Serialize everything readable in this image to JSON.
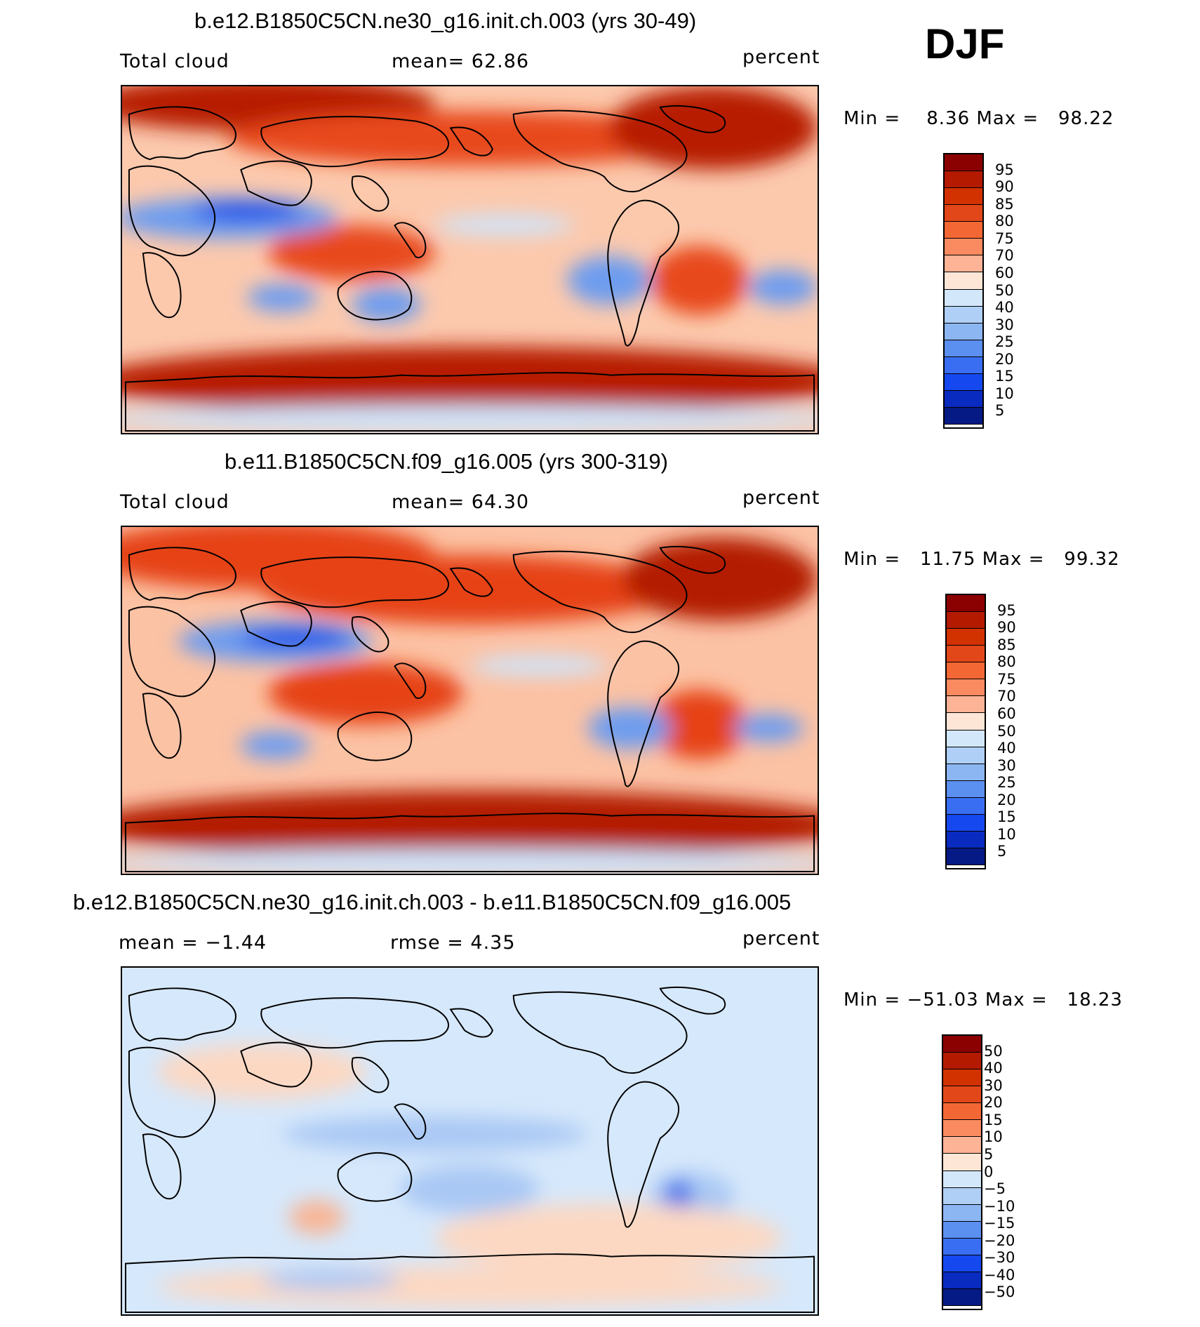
{
  "season": "DJF",
  "panels": [
    {
      "title": "b.e12.B1850C5CN.ne30_g16.init.ch.003 (yrs 30-49)",
      "left_label": "Total cloud",
      "center_label": "mean=   62.86",
      "right_label": "percent",
      "minmax": "Min =    8.36 Max =   98.22",
      "colorbar": {
        "labels": [
          "95",
          "90",
          "85",
          "80",
          "75",
          "70",
          "60",
          "50",
          "40",
          "30",
          "25",
          "20",
          "15",
          "10",
          "5"
        ],
        "colors": [
          "#8b0000",
          "#b31a00",
          "#d23100",
          "#e2471a",
          "#f36734",
          "#fa8a5f",
          "#fcb396",
          "#fde6d6",
          "#d3e7fa",
          "#b0cff6",
          "#8cb6f2",
          "#5b8ff0",
          "#3a6ef2",
          "#1549ef",
          "#0a2bc0",
          "#061a85"
        ]
      },
      "map_colors": {
        "base": "#fcc9ad",
        "high": "#e8491f",
        "vhigh": "#b71f05",
        "low": "#cfe4fa",
        "vlow": "#6d9cef",
        "vvlow": "#1f4fe8"
      }
    },
    {
      "title": "b.e11.B1850C5CN.f09_g16.005 (yrs 300-319)",
      "left_label": "Total cloud",
      "center_label": "mean=   64.30",
      "right_label": "percent",
      "minmax": "Min =   11.75 Max =   99.32",
      "colorbar": {
        "labels": [
          "95",
          "90",
          "85",
          "80",
          "75",
          "70",
          "60",
          "50",
          "40",
          "30",
          "25",
          "20",
          "15",
          "10",
          "5"
        ],
        "colors": [
          "#8b0000",
          "#b31a00",
          "#d23100",
          "#e2471a",
          "#f36734",
          "#fa8a5f",
          "#fcb396",
          "#fde6d6",
          "#d3e7fa",
          "#b0cff6",
          "#8cb6f2",
          "#5b8ff0",
          "#3a6ef2",
          "#1549ef",
          "#0a2bc0",
          "#061a85"
        ]
      },
      "map_colors": {
        "base": "#fcc2a4",
        "high": "#e64318",
        "vhigh": "#b31a00",
        "low": "#cfe4fa",
        "vlow": "#6d9cef",
        "vvlow": "#1f4fe8"
      }
    },
    {
      "title": "b.e12.B1850C5CN.ne30_g16.init.ch.003 - b.e11.B1850C5CN.f09_g16.005",
      "left_label": "mean =   −1.44",
      "center_label": "rmse =    4.35",
      "right_label": "percent",
      "minmax": "Min = −51.03 Max =   18.23",
      "colorbar": {
        "labels": [
          "50",
          "40",
          "30",
          "20",
          "15",
          "10",
          "5",
          "0",
          "−5",
          "−10",
          "−15",
          "−20",
          "−30",
          "−40",
          "−50"
        ],
        "colors": [
          "#8b0000",
          "#b31a00",
          "#d23100",
          "#e2471a",
          "#f36734",
          "#fa8a5f",
          "#fcb396",
          "#fde6d6",
          "#d3e7fa",
          "#b0cff6",
          "#8cb6f2",
          "#5b8ff0",
          "#3a6ef2",
          "#1549ef",
          "#0a2bc0",
          "#061a85"
        ]
      },
      "map_colors": {
        "base": "#d6e8fb",
        "high": "#fcd8c3",
        "vhigh": "#f8b595",
        "low": "#d6e8fb",
        "vlow": "#a9c8f4",
        "vvlow": "#3f6eea"
      }
    }
  ]
}
